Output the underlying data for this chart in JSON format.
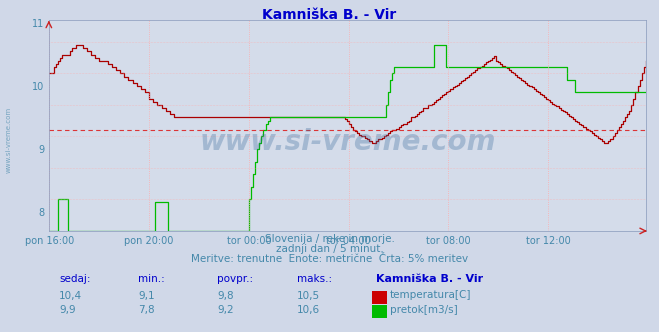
{
  "title": "Kamniška B. - Vir",
  "title_color": "#0000cc",
  "bg_color": "#d0d8e8",
  "plot_bg_color": "#d4dcea",
  "grid_color": "#ffaaaa",
  "tick_color": "#4488aa",
  "xlim": [
    0,
    287
  ],
  "ylim": [
    7.7,
    11.05
  ],
  "yticks": [
    8,
    9,
    10,
    11
  ],
  "ytick_labels": [
    "8",
    "9",
    "10",
    "11"
  ],
  "x_tick_positions": [
    0,
    48,
    96,
    144,
    192,
    240
  ],
  "x_tick_labels": [
    "pon 16:00",
    "pon 20:00",
    "tor 00:00",
    "tor 04:00",
    "tor 08:00",
    "tor 12:00"
  ],
  "avg_line_value": 9.3,
  "avg_line_color": "#dd2222",
  "temp_color": "#aa0000",
  "flow_color": "#00bb00",
  "watermark_color": "#336699",
  "watermark_text": "www.si-vreme.com",
  "watermark_alpha": 0.3,
  "subtitle1": "Slovenija / reke in morje.",
  "subtitle2": "zadnji dan / 5 minut.",
  "subtitle3": "Meritve: trenutne  Enote: metrične  Črta: 5% meritev",
  "subtitle_color": "#4488aa",
  "table_headers": [
    "sedaj:",
    "min.:",
    "povpr.:",
    "maks.:",
    "Kamniška B. - Vir"
  ],
  "table_row1": [
    "10,4",
    "9,1",
    "9,8",
    "10,5"
  ],
  "table_row2": [
    "9,9",
    "7,8",
    "9,2",
    "10,6"
  ],
  "legend1": "temperatura[C]",
  "legend2": "pretok[m3/s]",
  "sidebar_text": "www.si-vreme.com",
  "sidebar_color": "#4488aa",
  "temp_data": [
    10.2,
    10.2,
    10.3,
    10.35,
    10.4,
    10.45,
    10.5,
    10.5,
    10.5,
    10.5,
    10.55,
    10.6,
    10.6,
    10.65,
    10.65,
    10.65,
    10.6,
    10.6,
    10.55,
    10.55,
    10.5,
    10.5,
    10.45,
    10.45,
    10.4,
    10.4,
    10.4,
    10.4,
    10.35,
    10.35,
    10.3,
    10.3,
    10.25,
    10.25,
    10.2,
    10.2,
    10.15,
    10.15,
    10.1,
    10.1,
    10.05,
    10.05,
    10.0,
    10.0,
    9.95,
    9.95,
    9.9,
    9.9,
    9.8,
    9.8,
    9.75,
    9.75,
    9.7,
    9.7,
    9.65,
    9.65,
    9.6,
    9.6,
    9.55,
    9.55,
    9.5,
    9.5,
    9.5,
    9.5,
    9.5,
    9.5,
    9.5,
    9.5,
    9.5,
    9.5,
    9.5,
    9.5,
    9.5,
    9.5,
    9.5,
    9.5,
    9.5,
    9.5,
    9.5,
    9.5,
    9.5,
    9.5,
    9.5,
    9.5,
    9.5,
    9.5,
    9.5,
    9.5,
    9.5,
    9.5,
    9.5,
    9.5,
    9.5,
    9.5,
    9.5,
    9.5,
    9.5,
    9.5,
    9.5,
    9.5,
    9.5,
    9.5,
    9.5,
    9.5,
    9.5,
    9.5,
    9.5,
    9.5,
    9.5,
    9.5,
    9.5,
    9.5,
    9.5,
    9.5,
    9.5,
    9.5,
    9.5,
    9.5,
    9.5,
    9.5,
    9.5,
    9.5,
    9.5,
    9.5,
    9.5,
    9.5,
    9.5,
    9.5,
    9.5,
    9.5,
    9.5,
    9.5,
    9.5,
    9.5,
    9.5,
    9.5,
    9.5,
    9.5,
    9.5,
    9.5,
    9.5,
    9.5,
    9.48,
    9.45,
    9.4,
    9.35,
    9.3,
    9.28,
    9.25,
    9.22,
    9.2,
    9.2,
    9.18,
    9.15,
    9.12,
    9.1,
    9.1,
    9.12,
    9.15,
    9.15,
    9.18,
    9.2,
    9.22,
    9.25,
    9.28,
    9.3,
    9.3,
    9.32,
    9.35,
    9.38,
    9.4,
    9.4,
    9.42,
    9.45,
    9.5,
    9.5,
    9.52,
    9.55,
    9.58,
    9.6,
    9.65,
    9.65,
    9.7,
    9.7,
    9.72,
    9.75,
    9.78,
    9.8,
    9.82,
    9.85,
    9.88,
    9.9,
    9.92,
    9.95,
    9.98,
    10.0,
    10.02,
    10.05,
    10.08,
    10.1,
    10.12,
    10.15,
    10.18,
    10.2,
    10.22,
    10.25,
    10.28,
    10.3,
    10.32,
    10.35,
    10.38,
    10.4,
    10.42,
    10.45,
    10.48,
    10.4,
    10.38,
    10.35,
    10.32,
    10.3,
    10.28,
    10.25,
    10.22,
    10.2,
    10.18,
    10.15,
    10.12,
    10.1,
    10.08,
    10.05,
    10.02,
    10.0,
    9.98,
    9.95,
    9.92,
    9.9,
    9.88,
    9.85,
    9.82,
    9.8,
    9.78,
    9.75,
    9.72,
    9.7,
    9.68,
    9.65,
    9.62,
    9.6,
    9.58,
    9.55,
    9.52,
    9.5,
    9.48,
    9.45,
    9.42,
    9.4,
    9.38,
    9.35,
    9.32,
    9.3,
    9.28,
    9.25,
    9.22,
    9.2,
    9.18,
    9.15,
    9.12,
    9.1,
    9.1,
    9.12,
    9.15,
    9.2,
    9.25,
    9.3,
    9.35,
    9.4,
    9.45,
    9.5,
    9.55,
    9.6,
    9.7,
    9.8,
    9.9,
    10.0,
    10.1,
    10.2,
    10.3,
    10.4
  ],
  "flow_data": [
    7.7,
    7.7,
    7.7,
    7.7,
    8.2,
    8.2,
    8.2,
    8.2,
    8.2,
    7.7,
    7.7,
    7.7,
    7.7,
    7.7,
    7.7,
    7.7,
    7.7,
    7.7,
    7.7,
    7.7,
    7.7,
    7.7,
    7.7,
    7.7,
    7.7,
    7.7,
    7.7,
    7.7,
    7.7,
    7.7,
    7.7,
    7.7,
    7.7,
    7.7,
    7.7,
    7.7,
    7.7,
    7.7,
    7.7,
    7.7,
    7.7,
    7.7,
    7.7,
    7.7,
    7.7,
    7.7,
    7.7,
    7.7,
    7.7,
    7.7,
    7.7,
    8.15,
    8.15,
    8.15,
    8.15,
    8.15,
    8.15,
    7.7,
    7.7,
    7.7,
    7.7,
    7.7,
    7.7,
    7.7,
    7.7,
    7.7,
    7.7,
    7.7,
    7.7,
    7.7,
    7.7,
    7.7,
    7.7,
    7.7,
    7.7,
    7.7,
    7.7,
    7.7,
    7.7,
    7.7,
    7.7,
    7.7,
    7.7,
    7.7,
    7.7,
    7.7,
    7.7,
    7.7,
    7.7,
    7.7,
    7.7,
    7.7,
    7.7,
    7.7,
    7.7,
    7.7,
    8.2,
    8.4,
    8.6,
    8.8,
    9.0,
    9.1,
    9.2,
    9.3,
    9.4,
    9.45,
    9.5,
    9.5,
    9.5,
    9.5,
    9.5,
    9.5,
    9.5,
    9.5,
    9.5,
    9.5,
    9.5,
    9.5,
    9.5,
    9.5,
    9.5,
    9.5,
    9.5,
    9.5,
    9.5,
    9.5,
    9.5,
    9.5,
    9.5,
    9.5,
    9.5,
    9.5,
    9.5,
    9.5,
    9.5,
    9.5,
    9.5,
    9.5,
    9.5,
    9.5,
    9.5,
    9.5,
    9.5,
    9.5,
    9.5,
    9.5,
    9.5,
    9.5,
    9.5,
    9.5,
    9.5,
    9.5,
    9.5,
    9.5,
    9.5,
    9.5,
    9.5,
    9.5,
    9.5,
    9.5,
    9.5,
    9.5,
    9.7,
    9.9,
    10.1,
    10.2,
    10.3,
    10.3,
    10.3,
    10.3,
    10.3,
    10.3,
    10.3,
    10.3,
    10.3,
    10.3,
    10.3,
    10.3,
    10.3,
    10.3,
    10.3,
    10.3,
    10.3,
    10.3,
    10.3,
    10.65,
    10.65,
    10.65,
    10.65,
    10.65,
    10.65,
    10.3,
    10.3,
    10.3,
    10.3,
    10.3,
    10.3,
    10.3,
    10.3,
    10.3,
    10.3,
    10.3,
    10.3,
    10.3,
    10.3,
    10.3,
    10.3,
    10.3,
    10.3,
    10.3,
    10.3,
    10.3,
    10.3,
    10.3,
    10.3,
    10.3,
    10.3,
    10.3,
    10.3,
    10.3,
    10.3,
    10.3,
    10.3,
    10.3,
    10.3,
    10.3,
    10.3,
    10.3,
    10.3,
    10.3,
    10.3,
    10.3,
    10.3,
    10.3,
    10.3,
    10.3,
    10.3,
    10.3,
    10.3,
    10.3,
    10.3,
    10.3,
    10.3,
    10.3,
    10.3,
    10.3,
    10.3,
    10.3,
    10.3,
    10.1,
    10.1,
    10.1,
    10.1,
    9.9,
    9.9,
    9.9,
    9.9,
    9.9,
    9.9,
    9.9,
    9.9,
    9.9,
    9.9,
    9.9,
    9.9,
    9.9,
    9.9,
    9.9,
    9.9,
    9.9,
    9.9,
    9.9,
    9.9,
    9.9,
    9.9,
    9.9,
    9.9,
    9.9,
    9.9,
    9.9,
    9.9,
    9.9,
    9.9,
    9.9,
    9.9,
    9.9,
    9.9,
    9.9
  ]
}
